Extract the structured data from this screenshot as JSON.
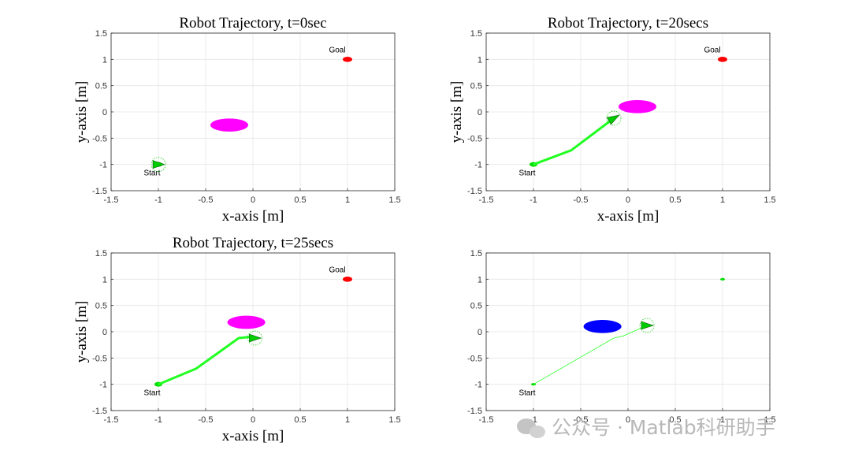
{
  "chart_data": [
    {
      "type": "scatter",
      "title": "Robot Trajectory, t=0sec",
      "xlabel": "x-axis [m]",
      "ylabel": "y-axis [m]",
      "xlim": [
        -1.5,
        1.5
      ],
      "ylim": [
        -1.5,
        1.5
      ],
      "xticks": [
        "-1.5",
        "-1",
        "-0.5",
        "0",
        "0.5",
        "1",
        "1.5"
      ],
      "yticks": [
        "-1.5",
        "-1",
        "-0.5",
        "0",
        "0.5",
        "1",
        "1.5"
      ],
      "grid": true,
      "start": {
        "label": "Start",
        "x": -1,
        "y": -1
      },
      "goal": {
        "label": "Goal",
        "x": 1,
        "y": 1
      },
      "obstacle": {
        "x": -0.25,
        "y": -0.25,
        "rx": 0.2,
        "ry": 0.1,
        "color": "#ff00ff"
      },
      "robot": {
        "x": -1,
        "y": -1,
        "heading_deg": 0
      },
      "trajectory": []
    },
    {
      "type": "scatter",
      "title": "Robot Trajectory, t=20secs",
      "xlabel": "x-axis [m]",
      "ylabel": "y-axis [m]",
      "xlim": [
        -1.5,
        1.5
      ],
      "ylim": [
        -1.5,
        1.5
      ],
      "xticks": [
        "-1.5",
        "-1",
        "-0.5",
        "0",
        "0.5",
        "1",
        "1.5"
      ],
      "yticks": [
        "-1.5",
        "-1",
        "-0.5",
        "0",
        "0.5",
        "1",
        "1.5"
      ],
      "grid": true,
      "start": {
        "label": "Start",
        "x": -1,
        "y": -1
      },
      "goal": {
        "label": "Goal",
        "x": 1,
        "y": 1
      },
      "obstacle": {
        "x": 0.1,
        "y": 0.1,
        "rx": 0.2,
        "ry": 0.1,
        "color": "#ff00ff"
      },
      "robot": {
        "x": -0.15,
        "y": -0.12,
        "heading_deg": 30
      },
      "trajectory": [
        [
          -1,
          -1
        ],
        [
          -0.6,
          -0.73
        ],
        [
          -0.15,
          -0.12
        ]
      ]
    },
    {
      "type": "scatter",
      "title": "Robot Trajectory, t=25secs",
      "xlabel": "x-axis [m]",
      "ylabel": "y-axis [m]",
      "xlim": [
        -1.5,
        1.5
      ],
      "ylim": [
        -1.5,
        1.5
      ],
      "xticks": [
        "-1.5",
        "-1",
        "-0.5",
        "0",
        "0.5",
        "1",
        "1.5"
      ],
      "yticks": [
        "-1.5",
        "-1",
        "-0.5",
        "0",
        "0.5",
        "1",
        "1.5"
      ],
      "grid": true,
      "start": {
        "label": "Start",
        "x": -1,
        "y": -1
      },
      "goal": {
        "label": "Goal",
        "x": 1,
        "y": 1
      },
      "obstacle": {
        "x": -0.07,
        "y": 0.18,
        "rx": 0.2,
        "ry": 0.1,
        "color": "#ff00ff"
      },
      "robot": {
        "x": 0.02,
        "y": -0.12,
        "heading_deg": 0
      },
      "trajectory": [
        [
          -1,
          -1
        ],
        [
          -0.6,
          -0.7
        ],
        [
          -0.15,
          -0.12
        ],
        [
          -0.05,
          -0.1
        ],
        [
          0.02,
          -0.12
        ]
      ]
    },
    {
      "type": "scatter",
      "title": "",
      "xlabel": "",
      "ylabel": "",
      "xlim": [
        -1.5,
        1.5
      ],
      "ylim": [
        -1.5,
        1.5
      ],
      "xticks": [
        "-1.5",
        "-1",
        "-0.5",
        "0",
        "0.5",
        "1",
        "1.5"
      ],
      "yticks": [
        "-1.5",
        "-1",
        "-0.5",
        "0",
        "0.5",
        "1",
        "1.5"
      ],
      "grid": true,
      "start": {
        "label": "Start",
        "x": -1,
        "y": -1
      },
      "goal": {
        "label": "",
        "x": 1,
        "y": 1
      },
      "obstacle": {
        "x": -0.27,
        "y": 0.1,
        "rx": 0.2,
        "ry": 0.1,
        "color": "#0000ff"
      },
      "robot": {
        "x": 0.2,
        "y": 0.12,
        "heading_deg": 0
      },
      "trajectory": [
        [
          -1,
          -1
        ],
        [
          -0.15,
          -0.12
        ],
        [
          -0.05,
          -0.08
        ],
        [
          0.05,
          0.0
        ],
        [
          0.2,
          0.12
        ]
      ]
    }
  ],
  "colors": {
    "start_marker": "#00dd00",
    "goal_marker": "#ff0000",
    "path": "#22ff22",
    "robot": "#00cc00",
    "grid": "#e6e6e6"
  },
  "watermark": {
    "text": "公众号 · Matlab科研助手",
    "icon": "wechat-icon"
  }
}
